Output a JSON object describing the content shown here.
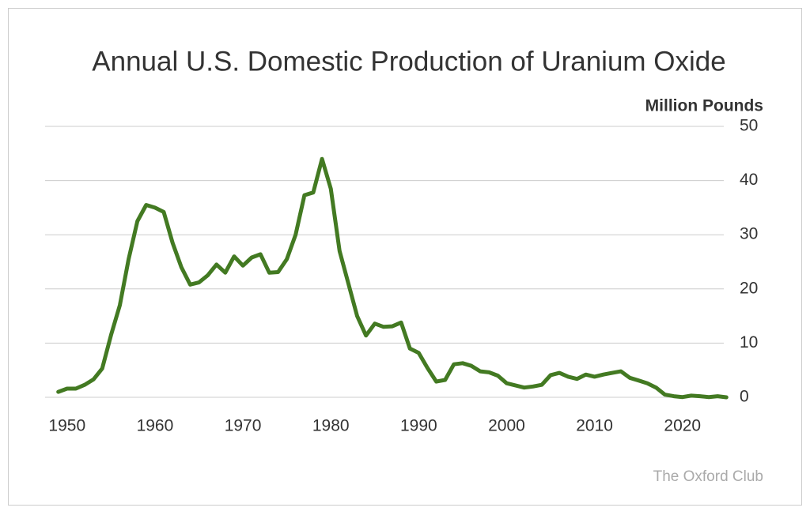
{
  "chart_data": {
    "type": "line",
    "title": "Annual U.S. Domestic Production of Uranium Oxide",
    "y_axis_label": "Million Pounds",
    "source": "The Oxford Club",
    "x": [
      1949,
      1950,
      1951,
      1952,
      1953,
      1954,
      1955,
      1956,
      1957,
      1958,
      1959,
      1960,
      1961,
      1962,
      1963,
      1964,
      1965,
      1966,
      1967,
      1968,
      1969,
      1970,
      1971,
      1972,
      1973,
      1974,
      1975,
      1976,
      1977,
      1978,
      1979,
      1980,
      1981,
      1982,
      1983,
      1984,
      1985,
      1986,
      1987,
      1988,
      1989,
      1990,
      1991,
      1992,
      1993,
      1994,
      1995,
      1996,
      1997,
      1998,
      1999,
      2000,
      2001,
      2002,
      2003,
      2004,
      2005,
      2006,
      2007,
      2008,
      2009,
      2010,
      2011,
      2012,
      2013,
      2014,
      2015,
      2016,
      2017,
      2018,
      2019,
      2020,
      2021,
      2022,
      2023,
      2024,
      2025
    ],
    "series": [
      {
        "name": "Uranium Oxide",
        "color": "#437a22",
        "values": [
          1,
          1.6,
          1.6,
          2.3,
          3.3,
          5.3,
          11.5,
          17,
          25.5,
          32.5,
          35.5,
          35,
          34.2,
          28.5,
          24,
          20.8,
          21.2,
          22.5,
          24.5,
          23,
          26,
          24.3,
          25.8,
          26.4,
          23,
          23.1,
          25.5,
          30,
          37.3,
          37.8,
          44,
          38.5,
          27,
          21,
          15,
          11.4,
          13.6,
          13,
          13.1,
          13.8,
          9,
          8.2,
          5.4,
          2.9,
          3.2,
          6.1,
          6.3,
          5.8,
          4.8,
          4.6,
          4,
          2.6,
          2.2,
          1.8,
          2,
          2.3,
          4.1,
          4.5,
          3.8,
          3.4,
          4.2,
          3.8,
          4.2,
          4.5,
          4.8,
          3.6,
          3.1,
          2.6,
          1.8,
          0.5,
          0.2,
          0.05,
          0.3,
          0.2,
          0.05,
          0.2,
          0
        ]
      }
    ],
    "xlim": [
      1947.5,
      2024.7
    ],
    "xticks": [
      1950,
      1960,
      1970,
      1980,
      1990,
      2000,
      2010,
      2020
    ],
    "ylim": [
      0,
      50
    ],
    "yticks": [
      0,
      10,
      20,
      30,
      40,
      50
    ],
    "grid": true
  }
}
